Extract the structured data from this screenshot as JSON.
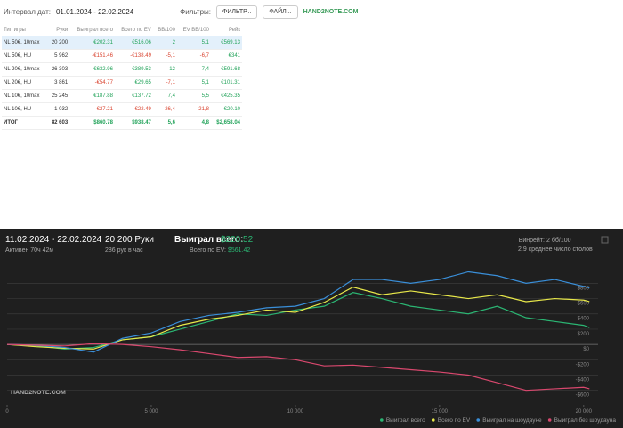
{
  "toolbar": {
    "date_label": "Интервал дат:",
    "date_range": "01.01.2024 - 22.02.2024",
    "filters_label": "Фильтры:",
    "filter_button": "ФИЛЬТР...",
    "file_button": "ФАЙЛ...",
    "logo": "HAND2NOTE.COM"
  },
  "table": {
    "columns": [
      "Тип игры",
      "Руки",
      "Выиграл всего",
      "Всего по EV",
      "BB/100",
      "EV BB/100",
      "Рейк"
    ],
    "rows": [
      [
        "NL 50€, 10max",
        "20 200",
        "€202.31",
        "€516.06",
        "2",
        "5,1",
        "€569.13"
      ],
      [
        "NL 50€, HU",
        "5 962",
        "-€151.46",
        "-€138.49",
        "-5,1",
        "-6,7",
        "€341"
      ],
      [
        "NL 20€, 10max",
        "26 303",
        "€632.96",
        "€389.53",
        "12",
        "7,4",
        "€591.68"
      ],
      [
        "NL 20€, HU",
        "3 861",
        "-€54.77",
        "€29.65",
        "-7,1",
        "5,1",
        "€101.31"
      ],
      [
        "NL 10€, 10max",
        "25 245",
        "€187.88",
        "€137.72",
        "7,4",
        "5,5",
        "€425.35"
      ],
      [
        "NL 10€, HU",
        "1 032",
        "-€27.21",
        "-€22.49",
        "-26,4",
        "-21,8",
        "€20.10"
      ]
    ],
    "total": [
      "ИТОГ",
      "82 603",
      "$860.78",
      "$938.47",
      "5,6",
      "4,8",
      "$2,658.04"
    ]
  },
  "chart_panel": {
    "date_range": "11.02.2024 - 22.02.2024",
    "active": "Активен 70ч 42м",
    "hands": "20 200 Руки",
    "hands_per_hour": "286 рук в час",
    "won_label": "Выиграл всего:",
    "won_value": "$220.52",
    "ev_label": "Всего по EV:",
    "ev_value": "$561.42",
    "winrate_label": "Винрейт:",
    "winrate_value": "2 бб/100",
    "tables": "2.9 среднее число столов",
    "watermark": "HAND2NOTE.COM"
  },
  "chart_data": {
    "type": "line",
    "x": [
      0,
      1000,
      2000,
      3000,
      4000,
      5000,
      6000,
      7000,
      8000,
      9000,
      10000,
      11000,
      12000,
      13000,
      14000,
      15000,
      16000,
      17000,
      18000,
      19000,
      20000,
      20200
    ],
    "xlim": [
      0,
      20500
    ],
    "xticks": [
      0,
      {
        "value": 5000,
        "label": "5 000"
      },
      {
        "value": 10000,
        "label": "10 000"
      },
      {
        "value": 15000,
        "label": "15 000"
      },
      {
        "value": 20000,
        "label": "20 000"
      }
    ],
    "ylim": [
      -790,
      1130
    ],
    "yticks": [
      {
        "value": 800,
        "label": "$800"
      },
      {
        "value": 600,
        "label": "$600"
      },
      {
        "value": 400,
        "label": "$400"
      },
      {
        "value": 200,
        "label": "$200"
      },
      {
        "value": 0,
        "label": "$0"
      },
      {
        "value": -200,
        "label": "-$200"
      },
      {
        "value": -400,
        "label": "-$400"
      },
      {
        "value": -600,
        "label": "-$600"
      }
    ],
    "grid": true,
    "series": [
      {
        "name": "Выиграл всего",
        "color": "#2bb673",
        "values": [
          0,
          -20,
          -60,
          -40,
          60,
          100,
          200,
          300,
          400,
          380,
          450,
          500,
          680,
          600,
          500,
          450,
          400,
          500,
          350,
          300,
          250,
          220
        ]
      },
      {
        "name": "Всего по EV",
        "color": "#e8e84a",
        "values": [
          0,
          -30,
          -50,
          -60,
          60,
          100,
          250,
          330,
          380,
          450,
          420,
          550,
          750,
          650,
          700,
          650,
          600,
          650,
          560,
          600,
          580,
          561
        ]
      },
      {
        "name": "Выиграл на шоудауне",
        "color": "#3a8fd9",
        "values": [
          0,
          -10,
          -40,
          -100,
          80,
          150,
          300,
          380,
          420,
          480,
          500,
          600,
          850,
          850,
          800,
          850,
          950,
          900,
          800,
          850,
          760,
          740
        ]
      },
      {
        "name": "Выиграл без шоудауна",
        "color": "#d9486e",
        "values": [
          0,
          -10,
          -20,
          10,
          0,
          -30,
          -70,
          -120,
          -170,
          -160,
          -200,
          -280,
          -270,
          -300,
          -330,
          -360,
          -400,
          -500,
          -600,
          -580,
          -560,
          -580
        ]
      }
    ]
  }
}
